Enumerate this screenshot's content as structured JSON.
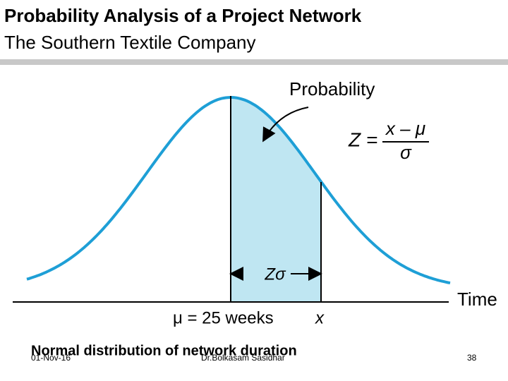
{
  "header": {
    "title": "Probability Analysis of a Project Network",
    "subtitle": "The Southern Textile Company"
  },
  "diagram": {
    "probability_label": "Probability",
    "formula": {
      "lhs": "Z =",
      "numerator": "x – μ",
      "denominator": "σ"
    },
    "span_label": "Zσ",
    "axis_label": "Time",
    "mean_label": "μ = 25 weeks",
    "x_label": "x"
  },
  "caption": "Normal distribution of network duration",
  "footer": {
    "date": "01-Nov-16",
    "author": "Dr.Bolkasam Sasidhar",
    "page": "38"
  }
}
